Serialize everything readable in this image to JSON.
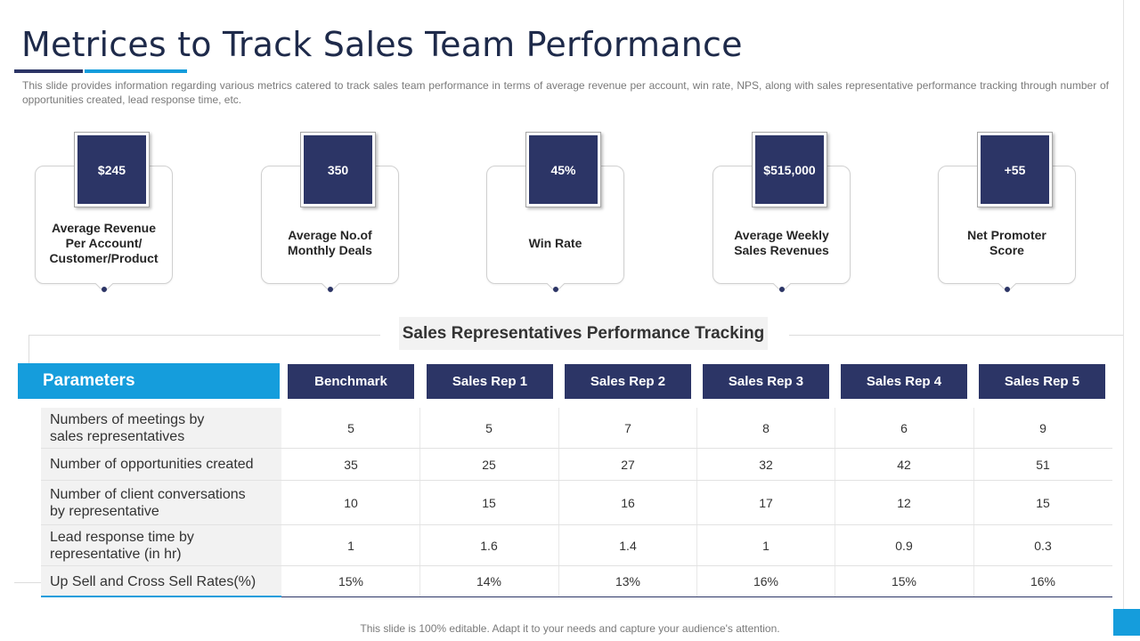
{
  "title": "Metrices to Track Sales Team Performance",
  "subtitle": "This slide provides information regarding various metrics catered to track sales team performance in terms of average revenue per account, win rate, NPS, along with sales representative performance tracking through number of opportunities created, lead response time, etc.",
  "colors": {
    "navy": "#2c3566",
    "blue": "#159ddc"
  },
  "kpis": [
    {
      "value": "$245",
      "label": "Average Revenue\nPer Account/\nCustomer/Product"
    },
    {
      "value": "350",
      "label": "Average No.of\nMonthly Deals"
    },
    {
      "value": "45%",
      "label": "Win Rate"
    },
    {
      "value": "$515,000",
      "label": "Average Weekly\nSales Revenues"
    },
    {
      "value": "+55",
      "label": "Net Promoter\nScore"
    }
  ],
  "table": {
    "section_title": "Sales Representatives Performance Tracking",
    "param_header": "Parameters",
    "columns": [
      "Benchmark",
      "Sales Rep 1",
      "Sales Rep 2",
      "Sales Rep 3",
      "Sales Rep 4",
      "Sales Rep 5"
    ],
    "rows": [
      {
        "label": "Numbers of meetings by\nsales representatives",
        "values": [
          "5",
          "5",
          "7",
          "8",
          "6",
          "9"
        ]
      },
      {
        "label": "Number of opportunities created",
        "values": [
          "35",
          "25",
          "27",
          "32",
          "42",
          "51"
        ]
      },
      {
        "label": "Number of client conversations\nby representative",
        "values": [
          "10",
          "15",
          "16",
          "17",
          "12",
          "15"
        ]
      },
      {
        "label": "Lead response time by\nrepresentative  (in hr)",
        "values": [
          "1",
          "1.6",
          "1.4",
          "1",
          "0.9",
          "0.3"
        ]
      },
      {
        "label": "Up Sell and Cross Sell Rates(%)",
        "values": [
          "15%",
          "14%",
          "13%",
          "16%",
          "15%",
          "16%"
        ]
      }
    ]
  },
  "footer": "This slide is 100% editable. Adapt it to your needs and capture your audience's attention."
}
